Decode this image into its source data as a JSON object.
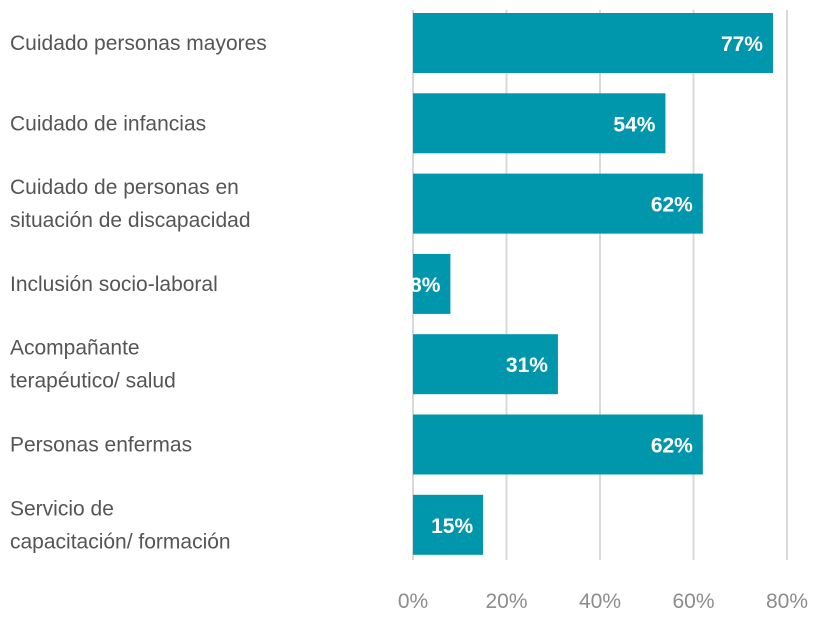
{
  "chart_data": {
    "type": "bar",
    "orientation": "horizontal",
    "categories": [
      [
        "Cuidado personas mayores"
      ],
      [
        "Cuidado de infancias"
      ],
      [
        "Cuidado de personas en",
        "situación de discapacidad"
      ],
      [
        "Inclusión socio-laboral"
      ],
      [
        "Acompañante",
        "terapéutico/ salud"
      ],
      [
        "Personas enfermas"
      ],
      [
        "Servicio de",
        "capacitación/ formación"
      ]
    ],
    "values": [
      77,
      54,
      62,
      8,
      31,
      62,
      15
    ],
    "data_labels": [
      "77%",
      "54%",
      "62%",
      "8%",
      "31%",
      "62%",
      "15%"
    ],
    "x_ticks": [
      "0%",
      "20%",
      "40%",
      "60%",
      "80%"
    ],
    "xlim": [
      0,
      80
    ],
    "grid": true,
    "bar_color": "#0097ad",
    "grid_color": "#d9d9d9"
  }
}
